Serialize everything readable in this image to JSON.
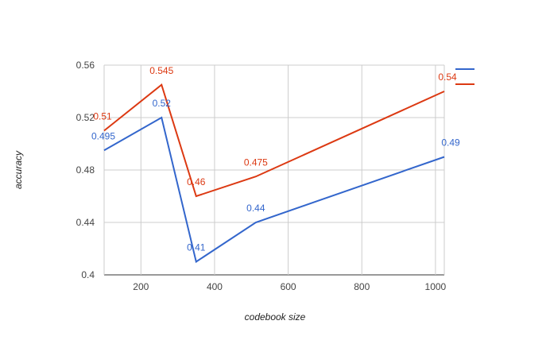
{
  "chart_data": {
    "type": "line",
    "title": "",
    "xlabel": "codebook size",
    "ylabel": "accuracy",
    "xlim": [
      100,
      1024
    ],
    "ylim": [
      0.4,
      0.56
    ],
    "x_ticks": [
      200,
      400,
      600,
      800,
      1000
    ],
    "x_tick_labels": [
      "200",
      "400",
      "600",
      "800",
      "1000"
    ],
    "y_ticks": [
      0.4,
      0.44,
      0.48,
      0.52,
      0.56
    ],
    "y_tick_labels": [
      "0.4",
      "0.44",
      "0.48",
      "0.52",
      "0.56"
    ],
    "x": [
      100,
      256,
      350,
      512,
      1024
    ],
    "series": [
      {
        "values": [
          0.495,
          0.52,
          0.41,
          0.44,
          0.49
        ],
        "labels": [
          "0.495",
          "0.52",
          "0.41",
          "0.44",
          "0.49"
        ],
        "color": "#3366cc"
      },
      {
        "values": [
          0.51,
          0.545,
          0.46,
          0.475,
          0.54
        ],
        "labels": [
          "0.51",
          "0.545",
          "0.46",
          "0.475",
          "0.54"
        ],
        "color": "#dc3912"
      }
    ],
    "grid": true,
    "legend_position": "right"
  }
}
